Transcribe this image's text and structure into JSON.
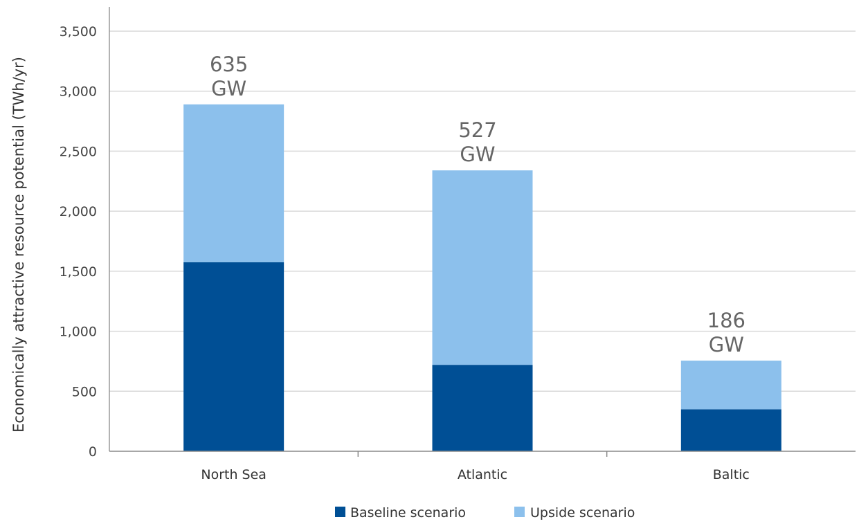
{
  "chart_data": {
    "type": "bar",
    "stacked": true,
    "categories": [
      "North Sea",
      "Atlantic",
      "Baltic"
    ],
    "series": [
      {
        "name": "Baseline scenario",
        "color": "#004f95",
        "values": [
          1575,
          720,
          350
        ]
      },
      {
        "name": "Upside scenario",
        "color": "#8cc0ec",
        "values": [
          1315,
          1620,
          405
        ]
      }
    ],
    "annotations": [
      {
        "line1": "635",
        "line2": "GW"
      },
      {
        "line1": "527",
        "line2": "GW"
      },
      {
        "line1": "186",
        "line2": "GW"
      }
    ],
    "ylabel": "Economically attractive resource potential (TWh/yr)",
    "xlabel": "",
    "ylim": [
      0,
      3500
    ],
    "yticks": [
      0,
      500,
      1000,
      1500,
      2000,
      2500,
      3000,
      3500
    ],
    "ytick_labels": [
      "0",
      "500",
      "1,000",
      "1,500",
      "2,000",
      "2,500",
      "3,000",
      "3,500"
    ],
    "grid": true,
    "legend_position": "bottom-center"
  }
}
